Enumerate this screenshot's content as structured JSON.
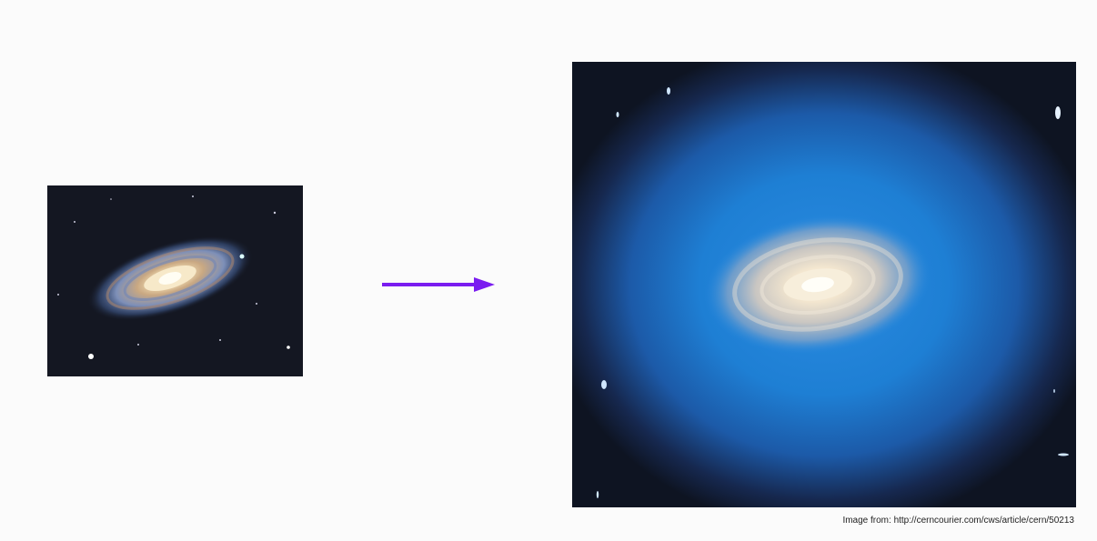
{
  "credit_text": "Image from: http://cerncourier.com/cws/article/cern/50213",
  "colors": {
    "background": "#fbfbfb",
    "arrow": "#7a1cf0",
    "space": "#141722",
    "halo_blue": "#1e7fd4"
  },
  "icons": {
    "arrow": "right-arrow-icon"
  }
}
